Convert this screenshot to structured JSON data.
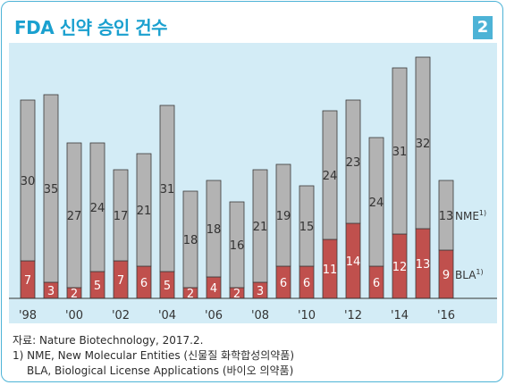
{
  "header": {
    "title": "FDA 신약 승인 건수",
    "figure_number": "2"
  },
  "chart_data": {
    "type": "bar",
    "stacked": true,
    "categories": [
      "1998",
      "1999",
      "2000",
      "2001",
      "2002",
      "2003",
      "2004",
      "2005",
      "2006",
      "2007",
      "2008",
      "2009",
      "2010",
      "2011",
      "2012",
      "2013",
      "2014",
      "2015",
      "2016"
    ],
    "tick_labels": [
      "'98",
      "",
      "'00",
      "",
      "'02",
      "",
      "'04",
      "",
      "'06",
      "",
      "'08",
      "",
      "'10",
      "",
      "'12",
      "",
      "'14",
      "",
      "'16"
    ],
    "series": [
      {
        "name": "BLA",
        "color": "#c0504d",
        "values": [
          7,
          3,
          2,
          5,
          7,
          6,
          5,
          2,
          4,
          2,
          3,
          6,
          6,
          11,
          14,
          6,
          12,
          13,
          9
        ]
      },
      {
        "name": "NME",
        "color": "#b3b3b3",
        "values": [
          30,
          35,
          27,
          24,
          17,
          21,
          31,
          18,
          18,
          16,
          21,
          19,
          15,
          24,
          23,
          24,
          31,
          32,
          13
        ]
      }
    ],
    "series_labels": [
      {
        "name": "NME",
        "mark": "1)"
      },
      {
        "name": "BLA",
        "mark": "1)"
      }
    ],
    "ylim": [
      0,
      46
    ],
    "background": "#d3ecf6",
    "grid": false
  },
  "notes": {
    "source": "자료: Nature Biotechnology, 2017.2.",
    "footnote_nme": "1) NME, New Molecular Entities (신물질 화학합성의약품)",
    "footnote_bla": "BLA, Biological License Applications (바이오 의약품)"
  }
}
